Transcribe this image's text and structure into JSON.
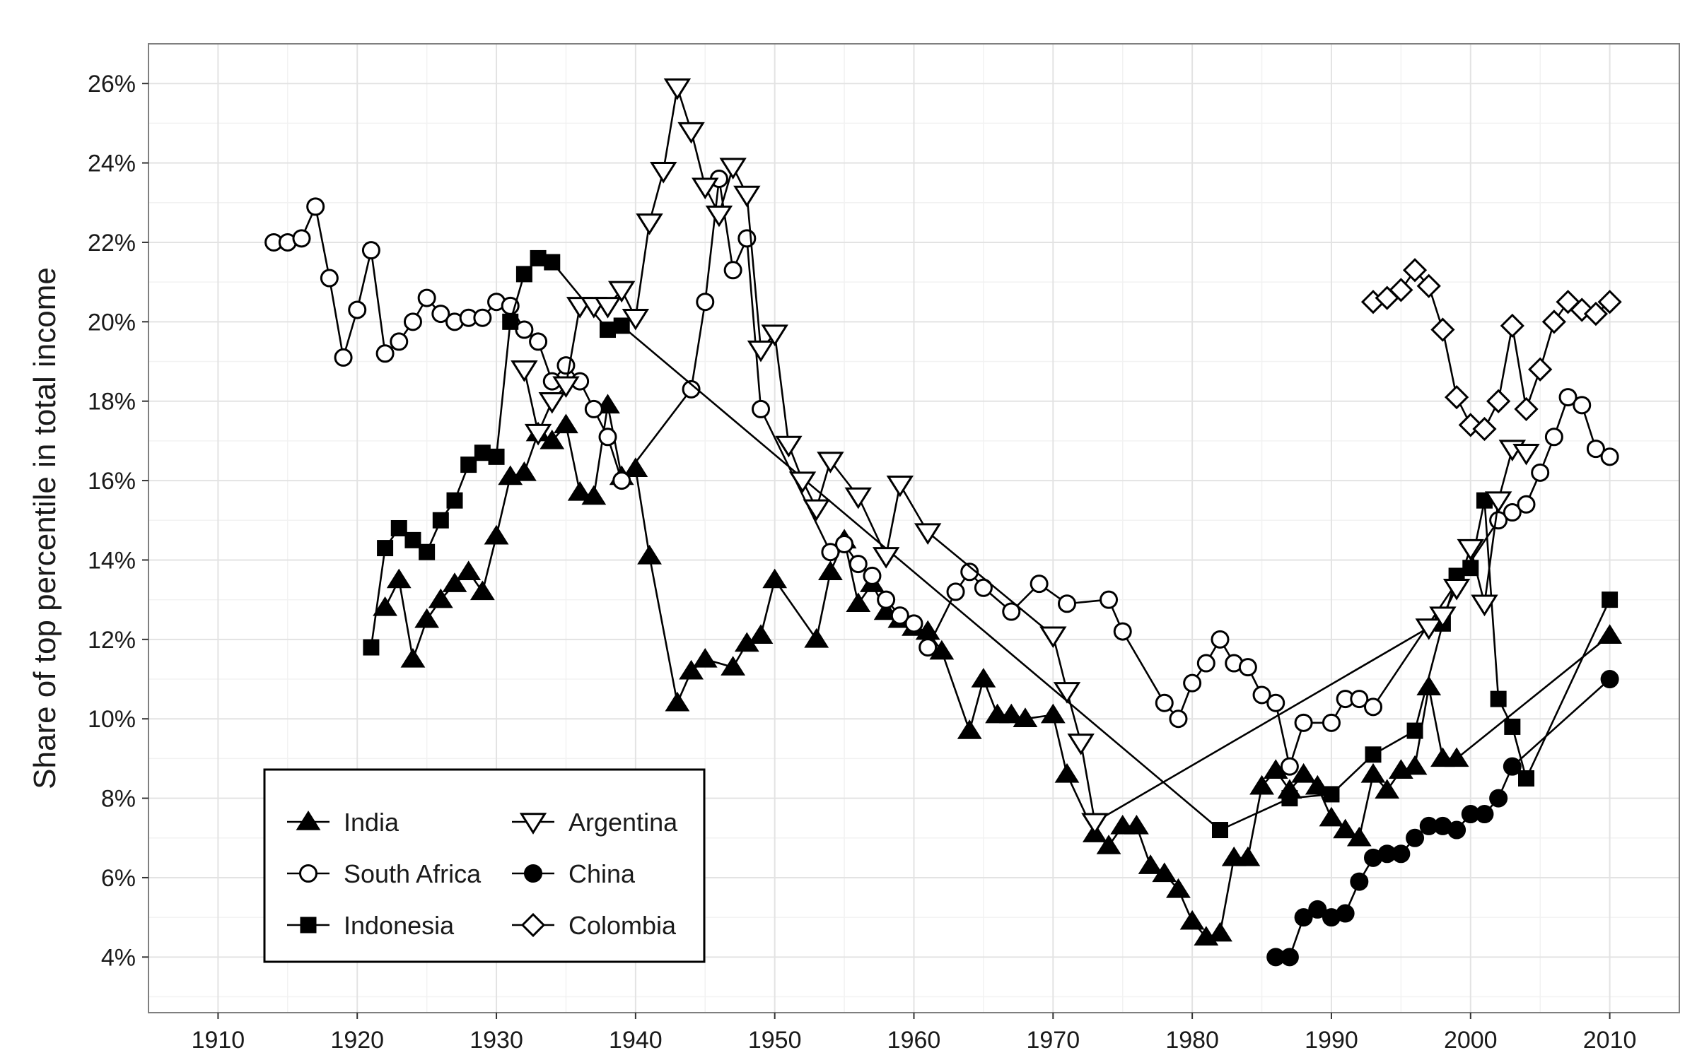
{
  "chart_data": {
    "type": "line",
    "title": "",
    "xlabel": "",
    "ylabel": "Share of top percentile in total income",
    "xlim": [
      1905,
      2015
    ],
    "ylim": [
      0.026,
      0.27
    ],
    "x_ticks": [
      1910,
      1920,
      1930,
      1940,
      1950,
      1960,
      1970,
      1980,
      1990,
      2000,
      2010
    ],
    "x_tick_labels": [
      "1910",
      "1920",
      "1930",
      "1940",
      "1950",
      "1960",
      "1970",
      "1980",
      "1990",
      "2000",
      "2010"
    ],
    "y_ticks": [
      0.04,
      0.06,
      0.08,
      0.1,
      0.12,
      0.14,
      0.16,
      0.18,
      0.2,
      0.22,
      0.24,
      0.26
    ],
    "y_tick_labels": [
      "4%",
      "6%",
      "8%",
      "10%",
      "12%",
      "14%",
      "16%",
      "18%",
      "20%",
      "22%",
      "24%",
      "26%"
    ],
    "grid": true,
    "legend_position": "bottom-left",
    "series": [
      {
        "name": "India",
        "marker": "triangle-up",
        "points": [
          [
            1922,
            0.128
          ],
          [
            1923,
            0.135
          ],
          [
            1924,
            0.115
          ],
          [
            1925,
            0.125
          ],
          [
            1926,
            0.13
          ],
          [
            1927,
            0.134
          ],
          [
            1928,
            0.137
          ],
          [
            1929,
            0.132
          ],
          [
            1930,
            0.146
          ],
          [
            1931,
            0.161
          ],
          [
            1932,
            0.162
          ],
          [
            1933,
            0.172
          ],
          [
            1934,
            0.17
          ],
          [
            1935,
            0.174
          ],
          [
            1936,
            0.157
          ],
          [
            1937,
            0.156
          ],
          [
            1938,
            0.179
          ],
          [
            1939,
            0.161
          ],
          [
            1940,
            0.163
          ],
          [
            1941,
            0.141
          ],
          [
            1943,
            0.104
          ],
          [
            1944,
            0.112
          ],
          [
            1945,
            0.115
          ],
          [
            1947,
            0.113
          ],
          [
            1948,
            0.119
          ],
          [
            1949,
            0.121
          ],
          [
            1950,
            0.135
          ],
          [
            1953,
            0.12
          ],
          [
            1954,
            0.137
          ],
          [
            1955,
            0.145
          ],
          [
            1956,
            0.129
          ],
          [
            1957,
            0.134
          ],
          [
            1958,
            0.127
          ],
          [
            1959,
            0.125
          ],
          [
            1960,
            0.123
          ],
          [
            1961,
            0.122
          ],
          [
            1962,
            0.117
          ],
          [
            1964,
            0.097
          ],
          [
            1965,
            0.11
          ],
          [
            1966,
            0.101
          ],
          [
            1967,
            0.101
          ],
          [
            1968,
            0.1
          ],
          [
            1970,
            0.101
          ],
          [
            1971,
            0.086
          ],
          [
            1973,
            0.071
          ],
          [
            1974,
            0.068
          ],
          [
            1975,
            0.073
          ],
          [
            1976,
            0.073
          ],
          [
            1977,
            0.063
          ],
          [
            1978,
            0.061
          ],
          [
            1979,
            0.057
          ],
          [
            1980,
            0.049
          ],
          [
            1981,
            0.045
          ],
          [
            1982,
            0.046
          ],
          [
            1983,
            0.065
          ],
          [
            1984,
            0.065
          ],
          [
            1985,
            0.083
          ],
          [
            1986,
            0.087
          ],
          [
            1987,
            0.082
          ],
          [
            1988,
            0.086
          ],
          [
            1989,
            0.083
          ],
          [
            1990,
            0.075
          ],
          [
            1991,
            0.072
          ],
          [
            1992,
            0.07
          ],
          [
            1993,
            0.086
          ],
          [
            1994,
            0.082
          ],
          [
            1995,
            0.087
          ],
          [
            1996,
            0.088
          ],
          [
            1997,
            0.108
          ],
          [
            1998,
            0.09
          ],
          [
            1999,
            0.09
          ],
          [
            2010,
            0.121
          ]
        ]
      },
      {
        "name": "South Africa",
        "marker": "circle-open",
        "points": [
          [
            1914,
            0.22
          ],
          [
            1915,
            0.22
          ],
          [
            1916,
            0.221
          ],
          [
            1917,
            0.229
          ],
          [
            1918,
            0.211
          ],
          [
            1919,
            0.191
          ],
          [
            1920,
            0.203
          ],
          [
            1921,
            0.218
          ],
          [
            1922,
            0.192
          ],
          [
            1923,
            0.195
          ],
          [
            1924,
            0.2
          ],
          [
            1925,
            0.206
          ],
          [
            1926,
            0.202
          ],
          [
            1927,
            0.2
          ],
          [
            1928,
            0.201
          ],
          [
            1929,
            0.201
          ],
          [
            1930,
            0.205
          ],
          [
            1931,
            0.204
          ],
          [
            1932,
            0.198
          ],
          [
            1933,
            0.195
          ],
          [
            1934,
            0.185
          ],
          [
            1935,
            0.189
          ],
          [
            1936,
            0.185
          ],
          [
            1937,
            0.178
          ],
          [
            1938,
            0.171
          ],
          [
            1939,
            0.16
          ],
          [
            1944,
            0.183
          ],
          [
            1945,
            0.205
          ],
          [
            1946,
            0.236
          ],
          [
            1947,
            0.213
          ],
          [
            1948,
            0.221
          ],
          [
            1949,
            0.178
          ],
          [
            1954,
            0.142
          ],
          [
            1955,
            0.144
          ],
          [
            1956,
            0.139
          ],
          [
            1957,
            0.136
          ],
          [
            1958,
            0.13
          ],
          [
            1959,
            0.126
          ],
          [
            1960,
            0.124
          ],
          [
            1961,
            0.118
          ],
          [
            1963,
            0.132
          ],
          [
            1964,
            0.137
          ],
          [
            1965,
            0.133
          ],
          [
            1967,
            0.127
          ],
          [
            1969,
            0.134
          ],
          [
            1971,
            0.129
          ],
          [
            1974,
            0.13
          ],
          [
            1975,
            0.122
          ],
          [
            1978,
            0.104
          ],
          [
            1979,
            0.1
          ],
          [
            1980,
            0.109
          ],
          [
            1981,
            0.114
          ],
          [
            1982,
            0.12
          ],
          [
            1983,
            0.114
          ],
          [
            1984,
            0.113
          ],
          [
            1985,
            0.106
          ],
          [
            1986,
            0.104
          ],
          [
            1987,
            0.088
          ],
          [
            1988,
            0.099
          ],
          [
            1990,
            0.099
          ],
          [
            1991,
            0.105
          ],
          [
            1992,
            0.105
          ],
          [
            1993,
            0.103
          ],
          [
            2002,
            0.15
          ],
          [
            2003,
            0.152
          ],
          [
            2004,
            0.154
          ],
          [
            2005,
            0.162
          ],
          [
            2006,
            0.171
          ],
          [
            2007,
            0.181
          ],
          [
            2008,
            0.179
          ],
          [
            2009,
            0.168
          ],
          [
            2010,
            0.166
          ]
        ]
      },
      {
        "name": "Indonesia",
        "marker": "square",
        "points": [
          [
            1921,
            0.118
          ],
          [
            1922,
            0.143
          ],
          [
            1923,
            0.148
          ],
          [
            1924,
            0.145
          ],
          [
            1925,
            0.142
          ],
          [
            1926,
            0.15
          ],
          [
            1927,
            0.155
          ],
          [
            1928,
            0.164
          ],
          [
            1929,
            0.167
          ],
          [
            1930,
            0.166
          ],
          [
            1931,
            0.2
          ],
          [
            1932,
            0.212
          ],
          [
            1933,
            0.216
          ],
          [
            1934,
            0.215
          ],
          [
            1938,
            0.198
          ],
          [
            1939,
            0.199
          ],
          [
            1982,
            0.072
          ],
          [
            1987,
            0.08
          ],
          [
            1990,
            0.081
          ],
          [
            1993,
            0.091
          ],
          [
            1996,
            0.097
          ],
          [
            1998,
            0.124
          ],
          [
            1999,
            0.136
          ],
          [
            2000,
            0.138
          ],
          [
            2001,
            0.155
          ],
          [
            2002,
            0.105
          ],
          [
            2003,
            0.098
          ],
          [
            2004,
            0.085
          ],
          [
            2010,
            0.13
          ]
        ]
      },
      {
        "name": "Argentina",
        "marker": "triangle-down-open",
        "points": [
          [
            1932,
            0.188
          ],
          [
            1933,
            0.172
          ],
          [
            1934,
            0.18
          ],
          [
            1935,
            0.184
          ],
          [
            1936,
            0.204
          ],
          [
            1937,
            0.204
          ],
          [
            1938,
            0.204
          ],
          [
            1939,
            0.208
          ],
          [
            1940,
            0.201
          ],
          [
            1941,
            0.225
          ],
          [
            1942,
            0.238
          ],
          [
            1943,
            0.259
          ],
          [
            1944,
            0.248
          ],
          [
            1945,
            0.234
          ],
          [
            1946,
            0.227
          ],
          [
            1947,
            0.239
          ],
          [
            1948,
            0.232
          ],
          [
            1949,
            0.193
          ],
          [
            1950,
            0.197
          ],
          [
            1951,
            0.169
          ],
          [
            1952,
            0.16
          ],
          [
            1953,
            0.153
          ],
          [
            1954,
            0.165
          ],
          [
            1956,
            0.156
          ],
          [
            1958,
            0.141
          ],
          [
            1959,
            0.159
          ],
          [
            1961,
            0.147
          ],
          [
            1970,
            0.121
          ],
          [
            1971,
            0.107
          ],
          [
            1972,
            0.094
          ],
          [
            1973,
            0.074
          ],
          [
            1997,
            0.123
          ],
          [
            1998,
            0.126
          ],
          [
            1999,
            0.133
          ],
          [
            2000,
            0.143
          ],
          [
            2001,
            0.129
          ],
          [
            2002,
            0.155
          ],
          [
            2003,
            0.168
          ],
          [
            2004,
            0.167
          ]
        ]
      },
      {
        "name": "China",
        "marker": "circle",
        "points": [
          [
            1986,
            0.04
          ],
          [
            1987,
            0.04
          ],
          [
            1988,
            0.05
          ],
          [
            1989,
            0.052
          ],
          [
            1990,
            0.05
          ],
          [
            1991,
            0.051
          ],
          [
            1992,
            0.059
          ],
          [
            1993,
            0.065
          ],
          [
            1994,
            0.066
          ],
          [
            1995,
            0.066
          ],
          [
            1996,
            0.07
          ],
          [
            1997,
            0.073
          ],
          [
            1998,
            0.073
          ],
          [
            1999,
            0.072
          ],
          [
            2000,
            0.076
          ],
          [
            2001,
            0.076
          ],
          [
            2002,
            0.08
          ],
          [
            2003,
            0.088
          ],
          [
            2010,
            0.11
          ]
        ]
      },
      {
        "name": "Colombia",
        "marker": "diamond-open",
        "points": [
          [
            1993,
            0.205
          ],
          [
            1994,
            0.206
          ],
          [
            1995,
            0.208
          ],
          [
            1996,
            0.213
          ],
          [
            1997,
            0.209
          ],
          [
            1998,
            0.198
          ],
          [
            1999,
            0.181
          ],
          [
            2000,
            0.174
          ],
          [
            2001,
            0.173
          ],
          [
            2002,
            0.18
          ],
          [
            2003,
            0.199
          ],
          [
            2004,
            0.178
          ],
          [
            2005,
            0.188
          ],
          [
            2006,
            0.2
          ],
          [
            2007,
            0.205
          ],
          [
            2008,
            0.203
          ],
          [
            2009,
            0.202
          ],
          [
            2010,
            0.205
          ]
        ]
      }
    ],
    "legend_layout": [
      [
        "India",
        "Argentina"
      ],
      [
        "South Africa",
        "China"
      ],
      [
        "Indonesia",
        "Colombia"
      ]
    ]
  }
}
